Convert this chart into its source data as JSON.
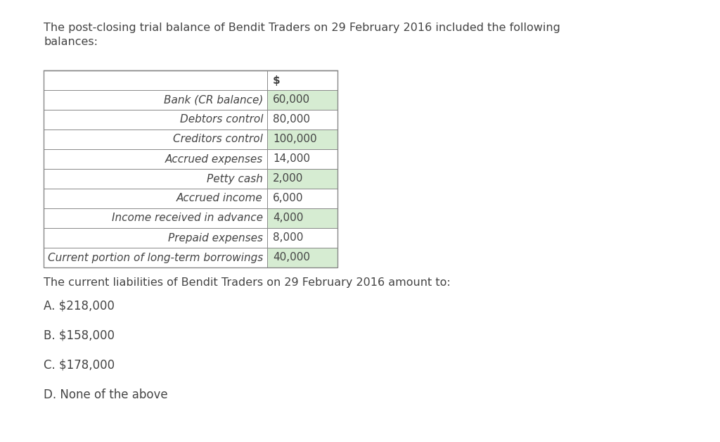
{
  "intro_text_line1": "The post-closing trial balance of Bendit Traders on 29 February 2016 included the following",
  "intro_text_line2": "balances:",
  "table_rows": [
    {
      "label": "",
      "value": "$",
      "header": true,
      "highlight": false
    },
    {
      "label": "Bank (CR balance)",
      "value": "60,000",
      "header": false,
      "highlight": true
    },
    {
      "label": "Debtors control",
      "value": "80,000",
      "header": false,
      "highlight": false
    },
    {
      "label": "Creditors control",
      "value": "100,000",
      "header": false,
      "highlight": true
    },
    {
      "label": "Accrued expenses",
      "value": "14,000",
      "header": false,
      "highlight": false
    },
    {
      "label": "Petty cash",
      "value": "2,000",
      "header": false,
      "highlight": true
    },
    {
      "label": "Accrued income",
      "value": "6,000",
      "header": false,
      "highlight": false
    },
    {
      "label": "Income received in advance",
      "value": "4,000",
      "header": false,
      "highlight": true
    },
    {
      "label": "Prepaid expenses",
      "value": "8,000",
      "header": false,
      "highlight": false
    },
    {
      "label": "Current portion of long-term borrowings",
      "value": "40,000",
      "header": false,
      "highlight": true
    }
  ],
  "question_text": "The current liabilities of Bendit Traders on 29 February 2016 amount to:",
  "options": [
    "A. $218,000",
    "B. $158,000",
    "C. $178,000",
    "D. None of the above"
  ],
  "highlight_color": "#d6ecd2",
  "table_border_color": "#888888",
  "text_color": "#444444",
  "bg_color": "#ffffff",
  "font_size_intro": 11.5,
  "font_size_table": 11,
  "font_size_question": 11.5,
  "font_size_options": 12
}
